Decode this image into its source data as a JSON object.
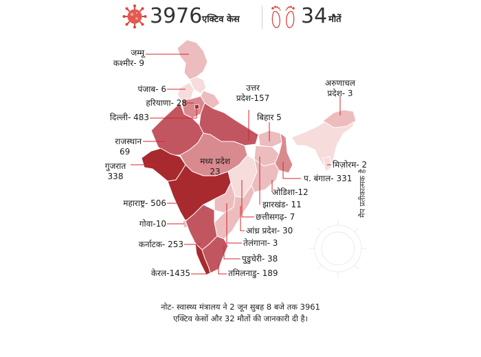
{
  "header": {
    "active_count": "3976",
    "active_label": "एक्टिव केस",
    "death_count": "34",
    "death_label": "मौतें",
    "virus_icon": "coronavirus-icon",
    "feet_icon": "footprints-icon"
  },
  "colors": {
    "very_high": "#a82a2e",
    "high": "#c25660",
    "medium": "#d98a8f",
    "low": "#ecbcbe",
    "very_low": "#f7dcdc",
    "leader": "#d0242a"
  },
  "labels": {
    "jk_1": "जम्मू",
    "jk_2": "कश्मीर- 9",
    "pb": "पंजाब- 6",
    "hr": "हरियाणा- 28",
    "dl": "दिल्ली- 483",
    "rj_1": "राजस्थान",
    "rj_2": "69",
    "gj_1": "गुजरात",
    "gj_2": "338",
    "mh": "महाराष्ट्र- 506",
    "ga": "गोवा-10",
    "ka": "कर्नाटक- 253",
    "kl": "केरल-1435",
    "up_1": "उत्तर",
    "up_2": "प्रदेश-157",
    "br": "बिहार 5",
    "mp_1": "मध्य प्रदेश",
    "mp_2": "23",
    "ar_1": "अरुणाचल",
    "ar_2": "प्रदेश- 3",
    "mz": "मिज़ोरम- 2",
    "wb": "प. बंगाल- 331",
    "od": "ओडिशा-12",
    "jh": "झारखंड- 11",
    "cg": "छत्तीसगढ़- 7",
    "ap": "आंध्र प्रदेश- 30",
    "tg": "तेलंगाना- 3",
    "py": "पुडुचेरी- 38",
    "tn": "तमिलनाडु- 189"
  },
  "note": {
    "line1": "नोट- स्वास्थ्य मंत्रालय ने 2 जून सुबह 8 बजे तक 3961",
    "line2": "एक्टिव केसों और 32 मौतों की जानकारी दी है।"
  },
  "side_text": "मैप प्रतीकात्मक है"
}
